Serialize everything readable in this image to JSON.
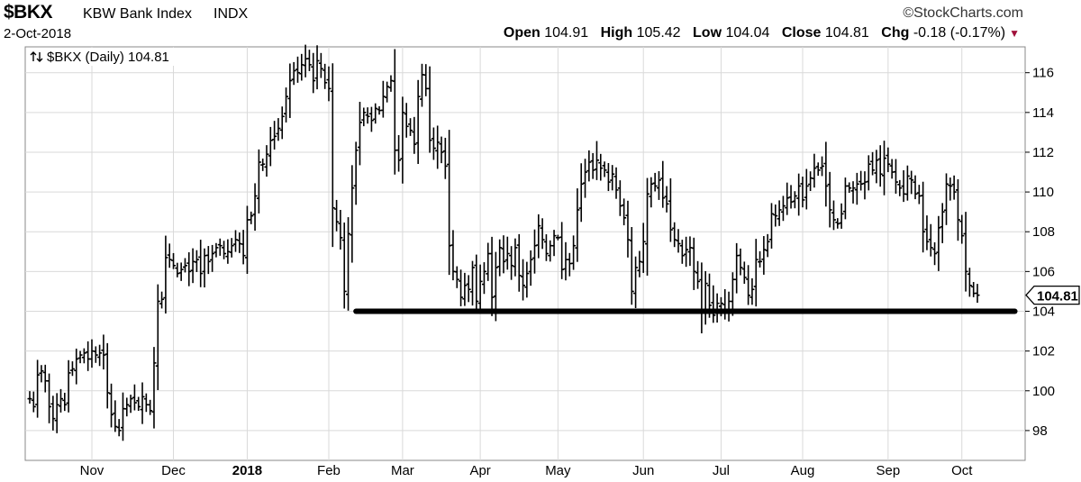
{
  "header": {
    "symbol": "$BKX",
    "name": "KBW Bank Index",
    "exchange": "INDX",
    "date": "2-Oct-2018",
    "brand": "©StockCharts.com",
    "open_label": "Open",
    "open": "104.91",
    "high_label": "High",
    "high": "105.42",
    "low_label": "Low",
    "low": "104.04",
    "close_label": "Close",
    "close": "104.81",
    "chg_label": "Chg",
    "chg": "-0.18 (-0.17%)"
  },
  "legend": {
    "icon": "updown-arrows-icon",
    "text": "$BKX (Daily) 104.81"
  },
  "colors": {
    "bars": "#000000",
    "grid": "#d9d9d9",
    "support_line": "#000000",
    "down_arrow": "#a0103a"
  },
  "chart_data": {
    "type": "ohlc",
    "ylim": [
      96.5,
      117.3
    ],
    "y_ticks": [
      98,
      100,
      102,
      104,
      106,
      108,
      110,
      112,
      114,
      116
    ],
    "x_ticks": [
      {
        "label": "Nov",
        "bar": 16,
        "bold": false
      },
      {
        "label": "Dec",
        "bar": 37,
        "bold": false
      },
      {
        "label": "2018",
        "bar": 56,
        "bold": true
      },
      {
        "label": "Feb",
        "bar": 77,
        "bold": false
      },
      {
        "label": "Mar",
        "bar": 96,
        "bold": false
      },
      {
        "label": "Apr",
        "bar": 116,
        "bold": false
      },
      {
        "label": "May",
        "bar": 136,
        "bold": false
      },
      {
        "label": "Jun",
        "bar": 158,
        "bold": false
      },
      {
        "label": "Jul",
        "bar": 178,
        "bold": false
      },
      {
        "label": "Aug",
        "bar": 199,
        "bold": false
      },
      {
        "label": "Sep",
        "bar": 221,
        "bold": false
      },
      {
        "label": "Oct",
        "bar": 240,
        "bold": false
      }
    ],
    "last_price_label": "104.81",
    "last_price": 104.81,
    "support_line": [
      {
        "from_bar": 84,
        "to_bar": 249,
        "value": 104.0
      }
    ],
    "close": [
      99.6,
      99.2,
      100.8,
      101.0,
      100.5,
      99.2,
      98.6,
      99.3,
      99.6,
      99.3,
      100.9,
      101.1,
      101.6,
      101.8,
      101.9,
      101.6,
      102.0,
      101.8,
      101.9,
      101.8,
      99.9,
      98.8,
      98.2,
      98.0,
      99.1,
      99.3,
      99.6,
      99.4,
      99.2,
      99.7,
      99.3,
      99.0,
      101.4,
      104.5,
      104.6,
      106.7,
      106.6,
      106.3,
      105.9,
      106.1,
      106.3,
      106.0,
      106.5,
      106.6,
      105.9,
      106.8,
      106.5,
      106.9,
      107.2,
      107.3,
      106.9,
      107.0,
      107.3,
      107.6,
      107.4,
      106.8,
      108.6,
      108.8,
      109.8,
      111.5,
      111.4,
      111.9,
      112.6,
      112.8,
      113.2,
      113.8,
      114.8,
      115.6,
      116.1,
      116.0,
      116.4,
      116.7,
      116.4,
      115.6,
      116.6,
      116.2,
      115.5,
      115.2,
      109.2,
      108.5,
      107.7,
      105.0,
      107.9,
      110.2,
      112.1,
      113.5,
      114.0,
      113.8,
      113.6,
      114.2,
      114.1,
      114.8,
      115.3,
      115.6,
      112.1,
      111.6,
      114.0,
      113.3,
      113.1,
      112.4,
      114.8,
      115.9,
      115.2,
      112.6,
      112.2,
      112.5,
      112.0,
      111.3,
      107.3,
      106.0,
      105.6,
      104.7,
      105.3,
      105.1,
      106.2,
      104.5,
      105.5,
      106.0,
      106.9,
      104.7,
      106.2,
      107.2,
      106.5,
      106.9,
      106.3,
      107.2,
      105.8,
      105.3,
      105.9,
      106.6,
      107.3,
      108.3,
      107.6,
      106.9,
      107.3,
      107.8,
      107.7,
      106.1,
      106.6,
      106.4,
      107.3,
      109.1,
      110.4,
      111.0,
      111.5,
      111.1,
      111.6,
      111.2,
      111.1,
      110.5,
      110.9,
      110.1,
      109.3,
      108.7,
      107.6,
      105.0,
      106.2,
      106.5,
      107.5,
      109.9,
      110.4,
      110.3,
      110.6,
      109.7,
      109.4,
      108.1,
      107.6,
      107.4,
      106.8,
      107.1,
      107.2,
      106.0,
      105.5,
      104.1,
      105.4,
      104.3,
      103.8,
      104.4,
      104.4,
      104.0,
      104.5,
      105.6,
      106.8,
      106.2,
      105.7,
      104.8,
      105.1,
      106.6,
      106.5,
      107.1,
      107.5,
      108.9,
      108.8,
      109.1,
      109.3,
      109.7,
      109.5,
      109.8,
      110.3,
      109.6,
      110.3,
      110.7,
      111.2,
      111.1,
      111.3,
      110.3,
      109.1,
      108.6,
      108.4,
      108.9,
      110.3,
      110.2,
      110.2,
      110.4,
      110.4,
      110.5,
      111.4,
      111.1,
      111.6,
      110.9,
      111.7,
      111.4,
      111.0,
      110.5,
      110.2,
      109.9,
      110.8,
      110.6,
      109.9,
      109.8,
      108.0,
      107.5,
      107.2,
      106.9,
      108.2,
      109.0,
      110.4,
      110.3,
      110.0,
      108.6,
      107.8,
      106.0,
      105.3,
      104.9,
      104.81
    ]
  }
}
